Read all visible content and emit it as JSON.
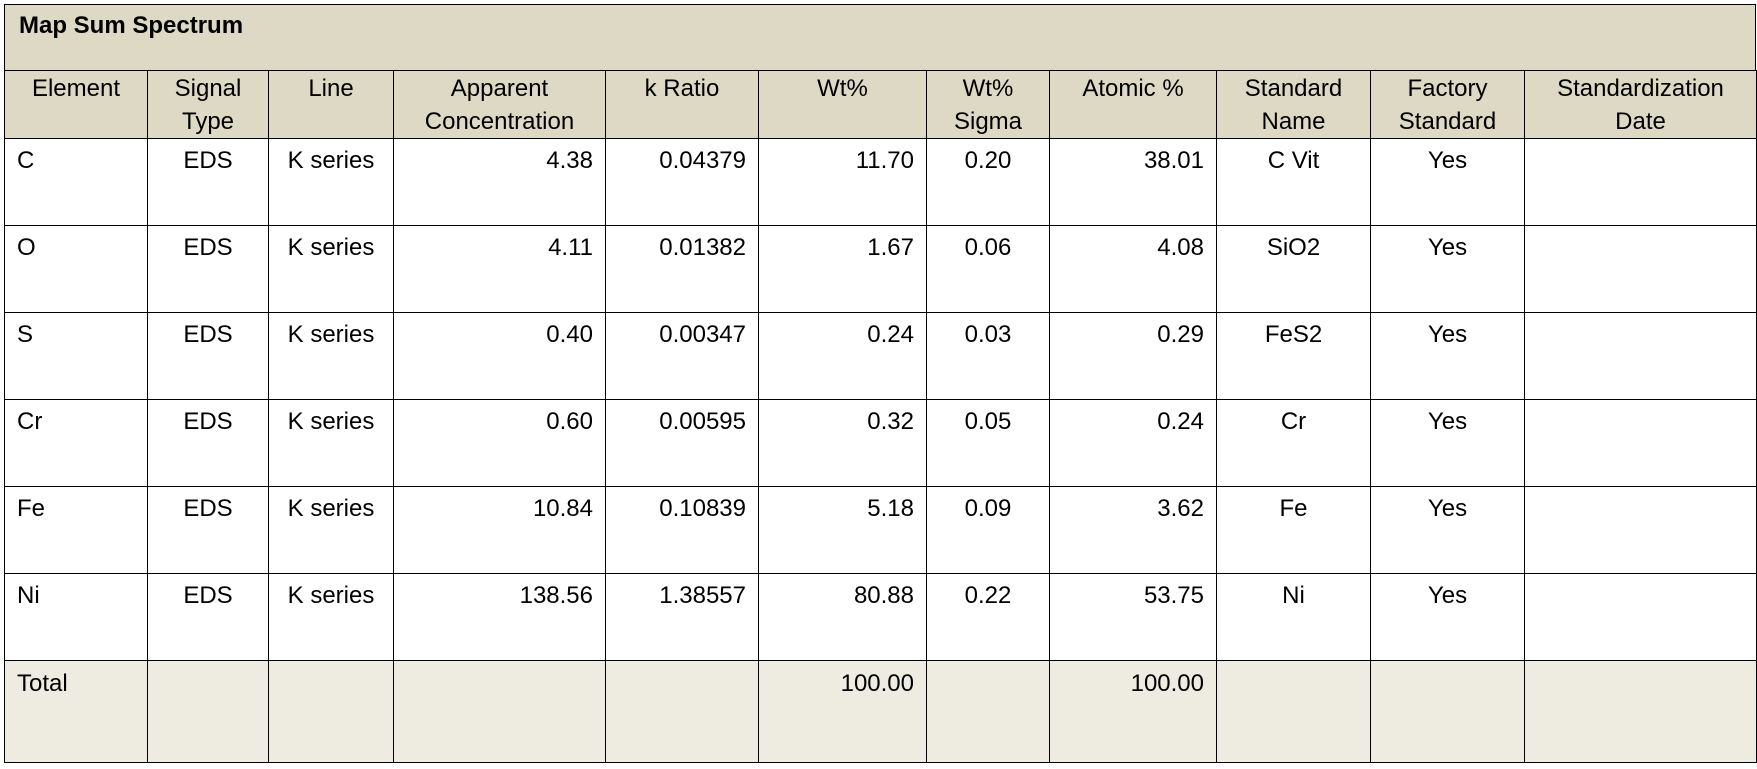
{
  "title": "Map Sum Spectrum",
  "columns": [
    "Element",
    "Signal Type",
    "Line",
    "Apparent Concentration",
    "k Ratio",
    "Wt%",
    "Wt% Sigma",
    "Atomic %",
    "Standard Name",
    "Factory Standard",
    "Standardization Date"
  ],
  "rows": [
    {
      "element": "C",
      "signal_type": "EDS",
      "line": "K series",
      "apparent_concentration": "4.38",
      "k_ratio": "0.04379",
      "wt_pct": "11.70",
      "wt_pct_sigma": "0.20",
      "atomic_pct": "38.01",
      "standard_name": "C Vit",
      "factory_standard": "Yes",
      "standardization_date": ""
    },
    {
      "element": "O",
      "signal_type": "EDS",
      "line": "K series",
      "apparent_concentration": "4.11",
      "k_ratio": "0.01382",
      "wt_pct": "1.67",
      "wt_pct_sigma": "0.06",
      "atomic_pct": "4.08",
      "standard_name": "SiO2",
      "factory_standard": "Yes",
      "standardization_date": ""
    },
    {
      "element": "S",
      "signal_type": "EDS",
      "line": "K series",
      "apparent_concentration": "0.40",
      "k_ratio": "0.00347",
      "wt_pct": "0.24",
      "wt_pct_sigma": "0.03",
      "atomic_pct": "0.29",
      "standard_name": "FeS2",
      "factory_standard": "Yes",
      "standardization_date": ""
    },
    {
      "element": "Cr",
      "signal_type": "EDS",
      "line": "K series",
      "apparent_concentration": "0.60",
      "k_ratio": "0.00595",
      "wt_pct": "0.32",
      "wt_pct_sigma": "0.05",
      "atomic_pct": "0.24",
      "standard_name": "Cr",
      "factory_standard": "Yes",
      "standardization_date": ""
    },
    {
      "element": "Fe",
      "signal_type": "EDS",
      "line": "K series",
      "apparent_concentration": "10.84",
      "k_ratio": "0.10839",
      "wt_pct": "5.18",
      "wt_pct_sigma": "0.09",
      "atomic_pct": "3.62",
      "standard_name": "Fe",
      "factory_standard": "Yes",
      "standardization_date": ""
    },
    {
      "element": "Ni",
      "signal_type": "EDS",
      "line": "K series",
      "apparent_concentration": "138.56",
      "k_ratio": "1.38557",
      "wt_pct": "80.88",
      "wt_pct_sigma": "0.22",
      "atomic_pct": "53.75",
      "standard_name": "Ni",
      "factory_standard": "Yes",
      "standardization_date": ""
    }
  ],
  "total": {
    "label": "Total",
    "wt_pct": "100.00",
    "atomic_pct": "100.00"
  },
  "colors": {
    "header_bg": "#ddd9c4",
    "total_bg": "#eeece1"
  }
}
